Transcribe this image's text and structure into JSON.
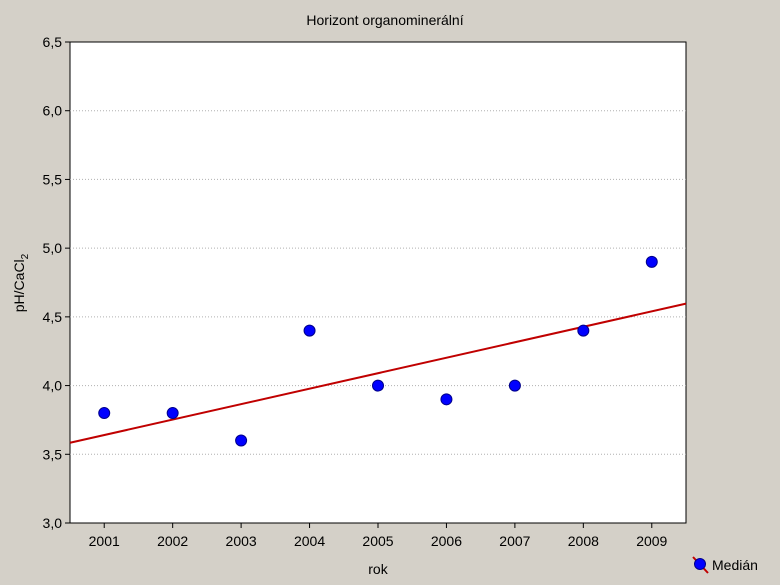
{
  "chart_data": {
    "type": "scatter",
    "title": "Horizont organominerální",
    "xlabel": "rok",
    "ylabel": "pH/CaCl",
    "ylabel_subscript": "2",
    "x": [
      2001,
      2002,
      2003,
      2004,
      2005,
      2006,
      2007,
      2008,
      2009
    ],
    "series": [
      {
        "name": "Medián",
        "values": [
          3.8,
          3.8,
          3.6,
          4.4,
          4.0,
          3.9,
          4.0,
          4.4,
          4.9
        ]
      }
    ],
    "trendline": {
      "intercept_at_2001": 3.64,
      "slope": 0.1125
    },
    "xlim": [
      2000.5,
      2009.5
    ],
    "ylim": [
      3.0,
      6.5
    ],
    "yticks": [
      3.0,
      3.5,
      4.0,
      4.5,
      5.0,
      5.5,
      6.0,
      6.5
    ],
    "ytick_labels": [
      "3,0",
      "3,5",
      "4,0",
      "4,5",
      "5,0",
      "5,5",
      "6,0",
      "6,5"
    ],
    "xtick_labels": [
      "2001",
      "2002",
      "2003",
      "2004",
      "2005",
      "2006",
      "2007",
      "2008",
      "2009"
    ],
    "grid": true,
    "legend": "bottom-right",
    "colors": {
      "marker": "#0000ff",
      "marker_edge": "#00008b",
      "trend": "#c00000",
      "grid": "#b0b0b0",
      "plot_bg": "#ffffff",
      "page_bg": "#d4d0c8"
    }
  }
}
